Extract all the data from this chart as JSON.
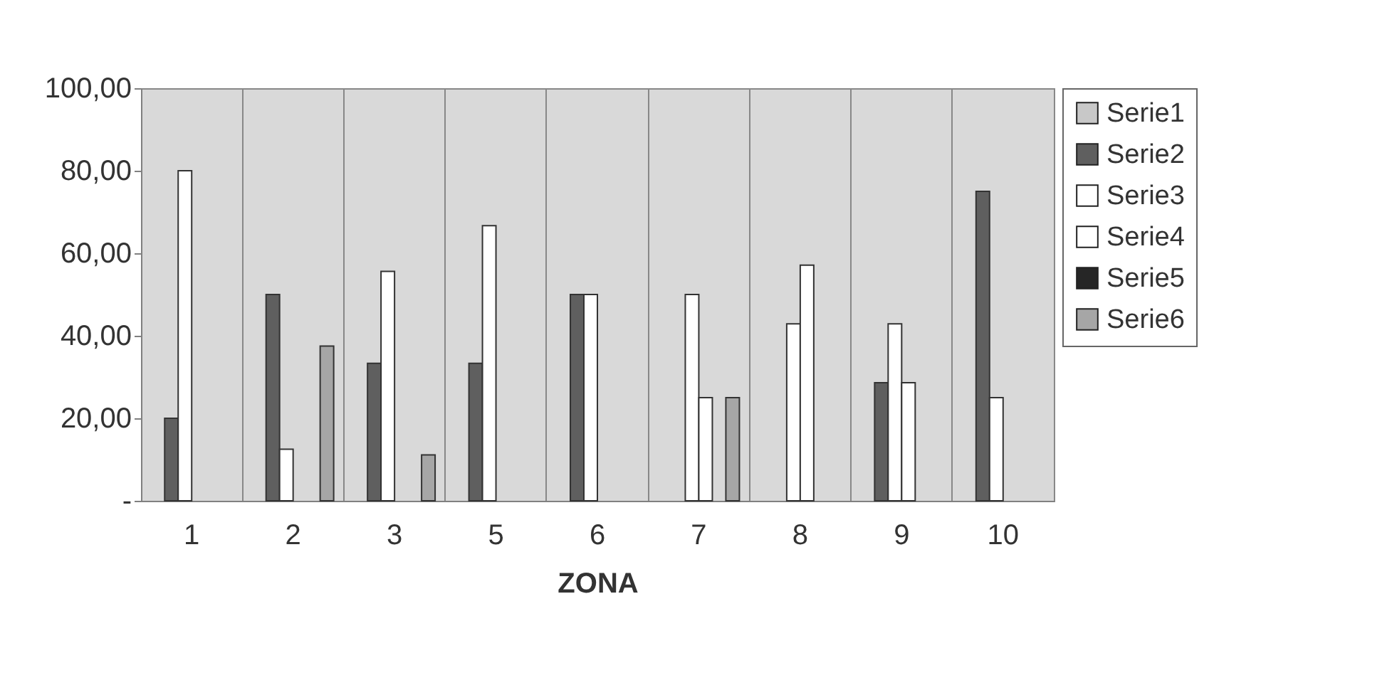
{
  "chart_data": {
    "type": "bar",
    "xlabel": "ZONA",
    "categories": [
      "1",
      "2",
      "3",
      "5",
      "6",
      "7",
      "8",
      "9",
      "10"
    ],
    "series": [
      {
        "name": "Serie1",
        "color": "#c8c8c8",
        "values": [
          null,
          null,
          null,
          null,
          null,
          null,
          null,
          null,
          null
        ]
      },
      {
        "name": "Serie2",
        "color": "#5f5f5f",
        "values": [
          20,
          50,
          33.3,
          33.3,
          50,
          null,
          null,
          28.6,
          75
        ]
      },
      {
        "name": "Serie3",
        "color": "#ffffff",
        "values": [
          80,
          12.5,
          55.6,
          66.7,
          50,
          50,
          42.9,
          42.9,
          25
        ]
      },
      {
        "name": "Serie4",
        "color": "#ffffff",
        "values": [
          null,
          null,
          null,
          null,
          null,
          25,
          57.1,
          28.6,
          null
        ]
      },
      {
        "name": "Serie5",
        "color": "#262626",
        "values": [
          null,
          null,
          null,
          null,
          null,
          null,
          null,
          null,
          null
        ]
      },
      {
        "name": "Serie6",
        "color": "#a6a6a6",
        "values": [
          null,
          37.5,
          11.1,
          null,
          null,
          25,
          null,
          null,
          null
        ]
      }
    ],
    "ylim": [
      0,
      100
    ],
    "yticks": [
      {
        "value": 0,
        "label": "-"
      },
      {
        "value": 20,
        "label": "20,00"
      },
      {
        "value": 40,
        "label": "40,00"
      },
      {
        "value": 60,
        "label": "60,00"
      },
      {
        "value": 80,
        "label": "80,00"
      },
      {
        "value": 100,
        "label": "100,00"
      }
    ],
    "grid": "x",
    "legend": "right"
  }
}
